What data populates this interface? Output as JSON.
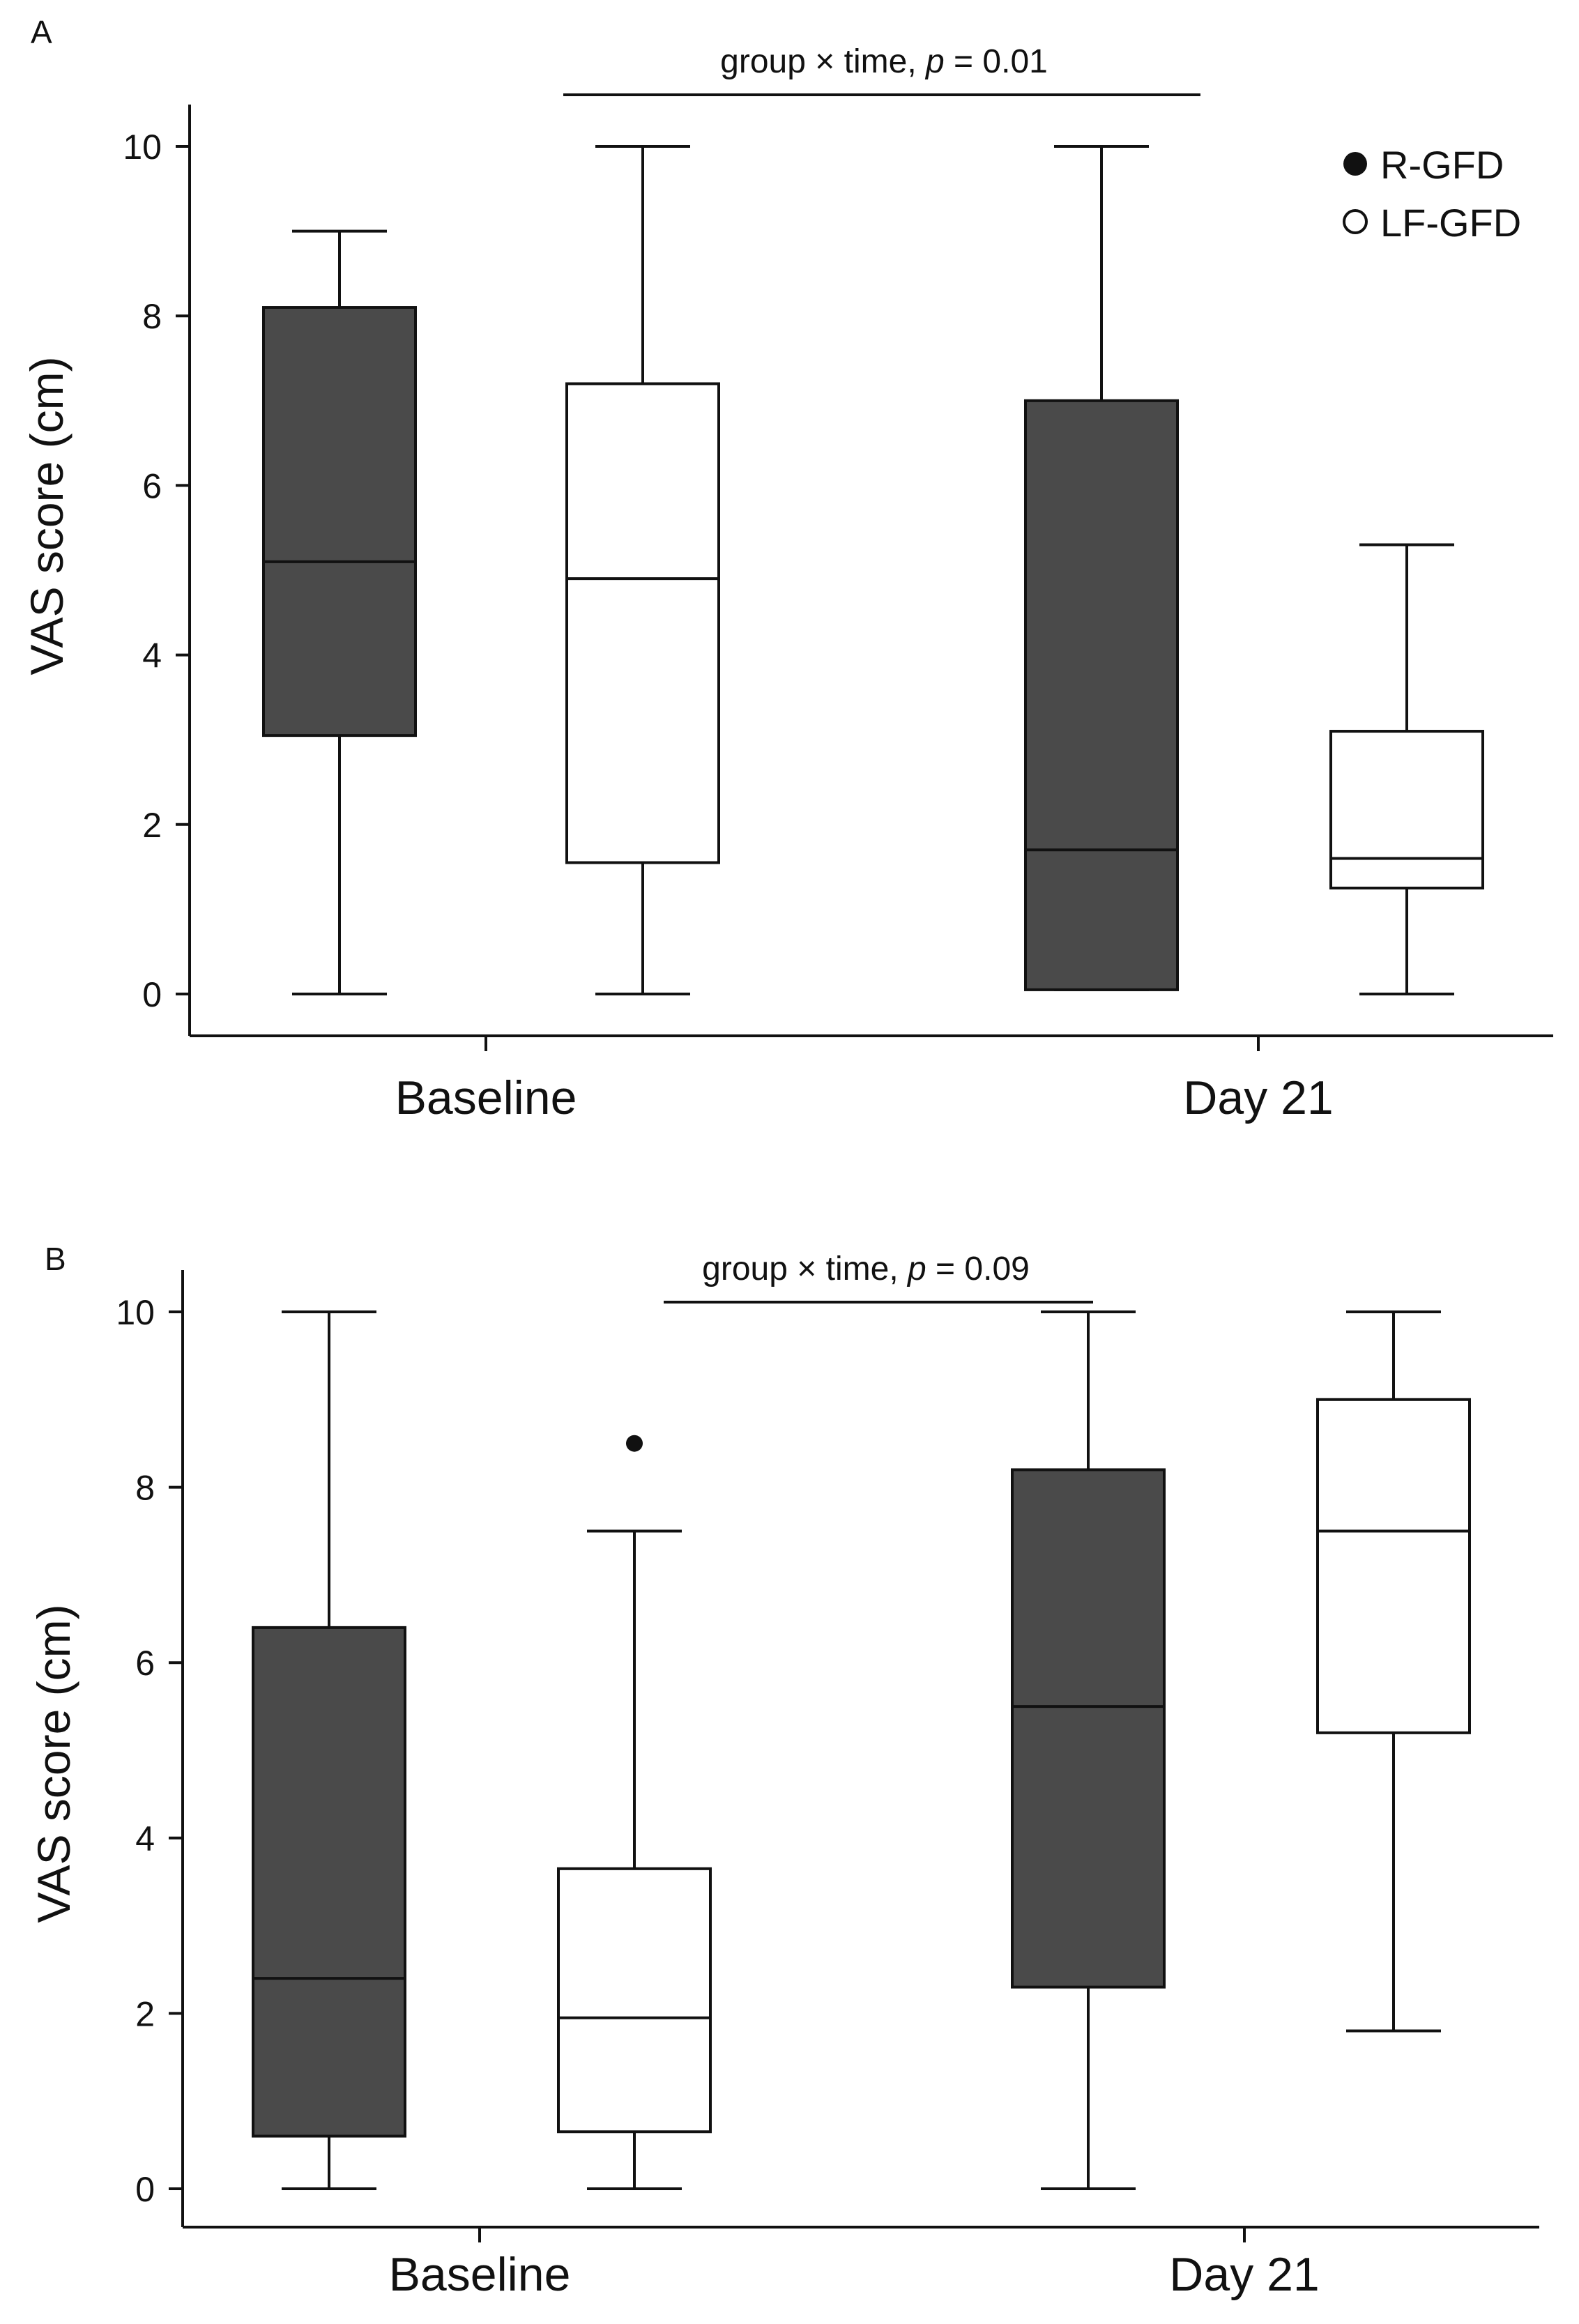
{
  "figure": {
    "colors": {
      "r_gfd": "#4a4a4a",
      "lf_gfd": "#ffffff",
      "stroke": "#111111"
    }
  },
  "legend": [
    {
      "label": "R-GFD",
      "marker": "filled-circle"
    },
    {
      "label": "LF-GFD",
      "marker": "open-circle"
    }
  ],
  "chart_data": [
    {
      "panel": "A",
      "type": "boxplot",
      "ylabel": "VAS score (cm)",
      "ylim": [
        0,
        10
      ],
      "yticks": [
        "0",
        "2",
        "4",
        "6",
        "8",
        "10"
      ],
      "categories": [
        "Baseline",
        "Day 21"
      ],
      "annotation": {
        "text": "group × time, ",
        "p_label": "p",
        "p_value": " = 0.01"
      },
      "legend_position": "top-right",
      "grid": false,
      "series": [
        {
          "name": "R-GFD",
          "boxes": [
            {
              "min": 0,
              "q1": 3.05,
              "median": 5.1,
              "q3": 8.1,
              "max": 9,
              "outliers": []
            },
            {
              "min": 0.05,
              "q1": 0.05,
              "median": 1.7,
              "q3": 7,
              "max": 10,
              "outliers": []
            }
          ]
        },
        {
          "name": "LF-GFD",
          "boxes": [
            {
              "min": 0,
              "q1": 1.55,
              "median": 4.9,
              "q3": 7.2,
              "max": 10,
              "outliers": []
            },
            {
              "min": 0,
              "q1": 1.25,
              "median": 1.6,
              "q3": 3.1,
              "max": 5.3,
              "outliers": []
            }
          ]
        }
      ]
    },
    {
      "panel": "B",
      "type": "boxplot",
      "ylabel": "VAS score (cm)",
      "ylim": [
        0,
        10
      ],
      "yticks": [
        "0",
        "2",
        "4",
        "6",
        "8",
        "10"
      ],
      "categories": [
        "Baseline",
        "Day 21"
      ],
      "annotation": {
        "text": "group × time, ",
        "p_label": "p",
        "p_value": " = 0.09"
      },
      "grid": false,
      "series": [
        {
          "name": "R-GFD",
          "boxes": [
            {
              "min": 0,
              "q1": 0.6,
              "median": 2.4,
              "q3": 6.4,
              "max": 10,
              "outliers": []
            },
            {
              "min": 0,
              "q1": 2.3,
              "median": 5.5,
              "q3": 8.2,
              "max": 10,
              "outliers": []
            }
          ]
        },
        {
          "name": "LF-GFD",
          "boxes": [
            {
              "min": 0,
              "q1": 0.65,
              "median": 1.95,
              "q3": 3.65,
              "max": 7.5,
              "outliers": [
                8.5
              ]
            },
            {
              "min": 1.8,
              "q1": 5.2,
              "median": 7.5,
              "q3": 9,
              "max": 10,
              "outliers": []
            }
          ]
        }
      ]
    }
  ]
}
